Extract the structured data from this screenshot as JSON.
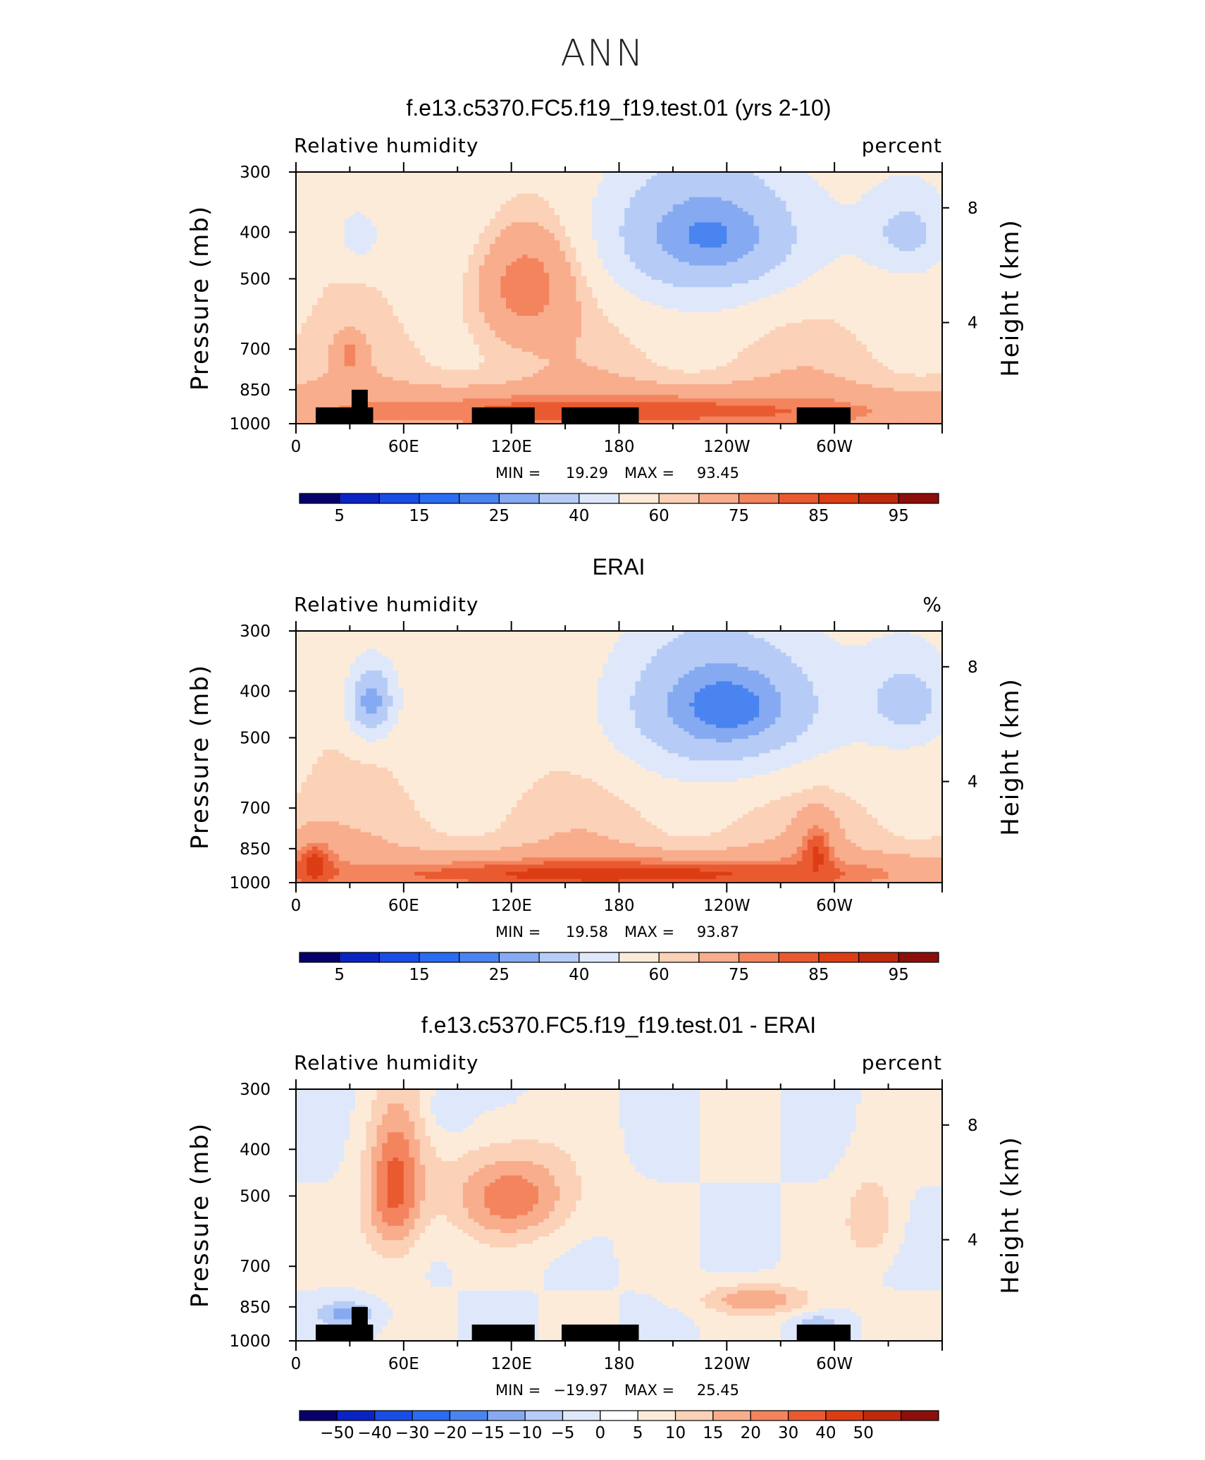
{
  "page_title": "ANN",
  "colors": {
    "abs_palette": [
      "#08006a",
      "#0a24c4",
      "#1a4de6",
      "#2a6cf2",
      "#4a84f0",
      "#86aaf2",
      "#b6ccf6",
      "#dfe8fa",
      "#fdebd9",
      "#fbd1b8",
      "#f8ad8c",
      "#f3845e",
      "#ea5a30",
      "#dc3d14",
      "#bf2a0c",
      "#8c0f0c"
    ],
    "diff_palette": [
      "#08006a",
      "#0a24c4",
      "#1a4de6",
      "#2a6cf2",
      "#4a84f0",
      "#86aaf2",
      "#b6ccf6",
      "#dfe8fa",
      "#ffffff",
      "#fdebd9",
      "#fbd1b8",
      "#f8ad8c",
      "#f3845e",
      "#ea5a30",
      "#dc3d14",
      "#bf2a0c",
      "#8c0f0c"
    ],
    "terrain": "#000000"
  },
  "chart_data": [
    {
      "type": "heatmap",
      "title": "f.e13.c5370.FC5.f19_f19.test.01 (yrs 2-10)",
      "variable_label": "Relative humidity",
      "units_label": "percent",
      "ylabel": "Pressure (mb)",
      "y2label": "Height (km)",
      "x_ticks": [
        "0",
        "60E",
        "120E",
        "180",
        "120W",
        "60W"
      ],
      "y_ticks": [
        "300",
        "400",
        "500",
        "700",
        "850",
        "1000"
      ],
      "y2_ticks": [
        "8",
        "4"
      ],
      "min_label": "MIN =",
      "min_value": "19.29",
      "max_label": "MAX =",
      "max_value": "93.45",
      "colorbar_labels": [
        "5",
        "15",
        "25",
        "40",
        "60",
        "75",
        "85",
        "95"
      ],
      "ylim": [
        1000,
        300
      ],
      "xlim": [
        0,
        360
      ],
      "features": [
        {
          "kind": "dry",
          "lon": 230,
          "p": 405,
          "rx": 62,
          "rp": 140,
          "v": 24
        },
        {
          "kind": "dry",
          "lon": 340,
          "p": 400,
          "rx": 22,
          "rp": 70,
          "v": 36
        },
        {
          "kind": "dry",
          "lon": 35,
          "p": 405,
          "rx": 14,
          "rp": 60,
          "v": 45
        },
        {
          "kind": "moist",
          "lon": 128,
          "p": 520,
          "rx": 28,
          "rp": 150,
          "v": 80
        },
        {
          "kind": "moist",
          "lon": 30,
          "p": 720,
          "rx": 8,
          "rp": 70,
          "v": 78
        },
        {
          "kind": "moist",
          "lon": 180,
          "p": 940,
          "rx": 180,
          "rp": 90,
          "v": 84
        }
      ],
      "terrain": [
        {
          "lon_start": 11,
          "lon_end": 43,
          "p_top": 925
        },
        {
          "lon_start": 31,
          "lon_end": 40,
          "p_top": 850
        },
        {
          "lon_start": 98,
          "lon_end": 133,
          "p_top": 925
        },
        {
          "lon_start": 148,
          "lon_end": 191,
          "p_top": 925
        },
        {
          "lon_start": 279,
          "lon_end": 309,
          "p_top": 925
        }
      ]
    },
    {
      "type": "heatmap",
      "title": "ERAI",
      "variable_label": "Relative humidity",
      "units_label": "%",
      "ylabel": "Pressure (mb)",
      "y2label": "Height (km)",
      "x_ticks": [
        "0",
        "60E",
        "120E",
        "180",
        "120W",
        "60W"
      ],
      "y_ticks": [
        "300",
        "400",
        "500",
        "700",
        "850",
        "1000"
      ],
      "y2_ticks": [
        "8",
        "4"
      ],
      "min_label": "MIN =",
      "min_value": "19.58",
      "max_label": "MAX =",
      "max_value": "93.87",
      "colorbar_labels": [
        "5",
        "15",
        "25",
        "40",
        "60",
        "75",
        "85",
        "95"
      ],
      "ylim": [
        1000,
        300
      ],
      "xlim": [
        0,
        360
      ],
      "features": [
        {
          "kind": "dry",
          "lon": 240,
          "p": 430,
          "rx": 62,
          "rp": 150,
          "v": 22
        },
        {
          "kind": "dry",
          "lon": 340,
          "p": 420,
          "rx": 24,
          "rp": 80,
          "v": 34
        },
        {
          "kind": "dry",
          "lon": 42,
          "p": 420,
          "rx": 14,
          "rp": 80,
          "v": 26
        },
        {
          "kind": "moist",
          "lon": 180,
          "p": 960,
          "rx": 175,
          "rp": 80,
          "v": 88
        },
        {
          "kind": "moist",
          "lon": 10,
          "p": 920,
          "rx": 12,
          "rp": 110,
          "v": 88
        },
        {
          "kind": "moist",
          "lon": 290,
          "p": 880,
          "rx": 10,
          "rp": 140,
          "v": 86
        }
      ],
      "terrain": []
    },
    {
      "type": "heatmap",
      "title": "f.e13.c5370.FC5.f19_f19.test.01 - ERAI",
      "variable_label": "Relative humidity",
      "units_label": "percent",
      "ylabel": "Pressure (mb)",
      "y2label": "Height (km)",
      "x_ticks": [
        "0",
        "60E",
        "120E",
        "180",
        "120W",
        "60W"
      ],
      "y_ticks": [
        "300",
        "400",
        "500",
        "700",
        "850",
        "1000"
      ],
      "y2_ticks": [
        "8",
        "4"
      ],
      "min_label": "MIN =",
      "min_value": "−19.97",
      "max_label": "MAX =",
      "max_value": "25.45",
      "colorbar_labels": [
        "−50",
        "−40",
        "−30",
        "−20",
        "−15",
        "−10",
        "−5",
        "0",
        "5",
        "10",
        "15",
        "20",
        "30",
        "40",
        "50"
      ],
      "ylim": [
        1000,
        300
      ],
      "xlim": [
        0,
        360
      ],
      "features": [
        {
          "kind": "moist",
          "lon": 55,
          "p": 480,
          "rx": 16,
          "rp": 170,
          "v": 22
        },
        {
          "kind": "moist",
          "lon": 120,
          "p": 500,
          "rx": 35,
          "rp": 110,
          "v": 18
        },
        {
          "kind": "moist",
          "lon": 257,
          "p": 820,
          "rx": 30,
          "rp": 60,
          "v": 14
        },
        {
          "kind": "moist",
          "lon": 320,
          "p": 560,
          "rx": 14,
          "rp": 110,
          "v": 10
        },
        {
          "kind": "dry",
          "lon": 28,
          "p": 880,
          "rx": 15,
          "rp": 50,
          "v": -12
        },
        {
          "kind": "dry",
          "lon": 85,
          "p": 330,
          "rx": 12,
          "rp": 40,
          "v": -6
        },
        {
          "kind": "dry",
          "lon": 290,
          "p": 920,
          "rx": 12,
          "rp": 40,
          "v": -8
        }
      ],
      "terrain": [
        {
          "lon_start": 11,
          "lon_end": 43,
          "p_top": 925
        },
        {
          "lon_start": 31,
          "lon_end": 40,
          "p_top": 850
        },
        {
          "lon_start": 98,
          "lon_end": 133,
          "p_top": 925
        },
        {
          "lon_start": 148,
          "lon_end": 191,
          "p_top": 925
        },
        {
          "lon_start": 279,
          "lon_end": 309,
          "p_top": 925
        }
      ]
    }
  ]
}
